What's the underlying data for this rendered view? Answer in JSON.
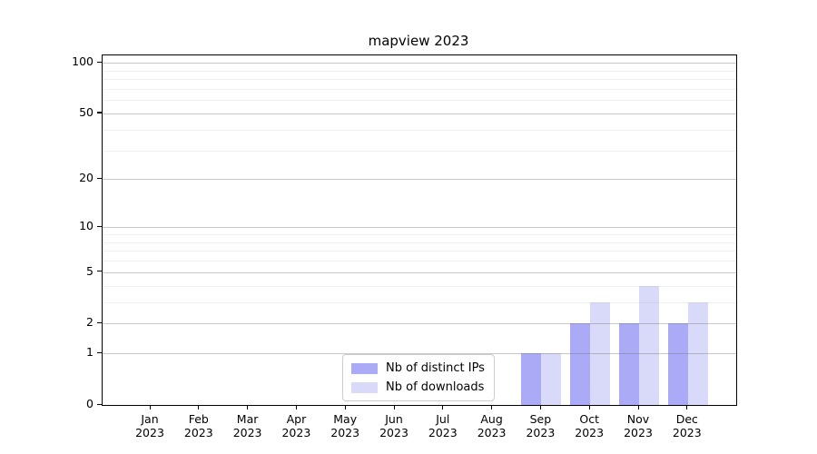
{
  "title": "mapview 2023",
  "colors": {
    "bar_distinct_ips": "#aaaaf7",
    "bar_downloads": "#d9d9fa",
    "axis": "#000000",
    "legend_border": "#cccccc"
  },
  "chart_data": {
    "type": "bar",
    "title": "mapview 2023",
    "categories": [
      "Jan 2023",
      "Feb 2023",
      "Mar 2023",
      "Apr 2023",
      "May 2023",
      "Jun 2023",
      "Jul 2023",
      "Aug 2023",
      "Sep 2023",
      "Oct 2023",
      "Nov 2023",
      "Dec 2023"
    ],
    "series": [
      {
        "name": "Nb of distinct IPs",
        "color": "#aaaaf7",
        "values": [
          0,
          0,
          0,
          0,
          0,
          0,
          0,
          0,
          1,
          2,
          2,
          2
        ]
      },
      {
        "name": "Nb of downloads",
        "color": "#d9d9fa",
        "values": [
          0,
          0,
          0,
          0,
          0,
          0,
          0,
          0,
          1,
          3,
          4,
          3
        ]
      }
    ],
    "xlabel": "",
    "ylabel": "",
    "yscale": "log1p",
    "ylim": [
      0,
      112
    ],
    "yticks": [
      0,
      1,
      2,
      5,
      10,
      20,
      50,
      100
    ],
    "minor_yticks": [
      3,
      4,
      6,
      7,
      8,
      9,
      30,
      40,
      60,
      70,
      80,
      90
    ],
    "grid": true,
    "legend_position": "lower center"
  }
}
